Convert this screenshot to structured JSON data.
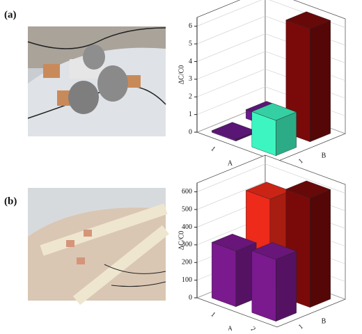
{
  "chart_data": [
    {
      "type": "bar3d",
      "panel_label": "(a)",
      "z_label": "ΔC/C0",
      "x_label": "A",
      "y_label": "B",
      "x_categories": [
        "1",
        "2"
      ],
      "y_categories": [
        "1",
        null
      ],
      "values": [
        [
          0.1,
          0.5
        ],
        [
          2.0,
          6.4
        ]
      ],
      "colors": [
        [
          "#6a1a8a",
          "#6a1a8a"
        ],
        [
          "#3df5c0",
          "#7a0a0a"
        ]
      ],
      "zlim": [
        0,
        6.5
      ],
      "zticks": [
        0,
        1,
        2,
        3,
        4,
        5,
        6
      ],
      "grid": true
    },
    {
      "type": "bar3d",
      "panel_label": "(b)",
      "z_label": "ΔC/C0",
      "x_label": "A",
      "y_label": "B",
      "x_categories": [
        "1",
        "2"
      ],
      "y_categories": [
        "1",
        null
      ],
      "values": [
        [
          315,
          530
        ],
        [
          350,
          620
        ]
      ],
      "colors": [
        [
          "#7a1a8e",
          "#ee2a1a"
        ],
        [
          "#7a1a8e",
          "#7a0a0a"
        ]
      ],
      "zlim": [
        0,
        650
      ],
      "zticks": [
        0,
        100,
        200,
        300,
        400,
        500,
        600
      ],
      "grid": true
    }
  ]
}
